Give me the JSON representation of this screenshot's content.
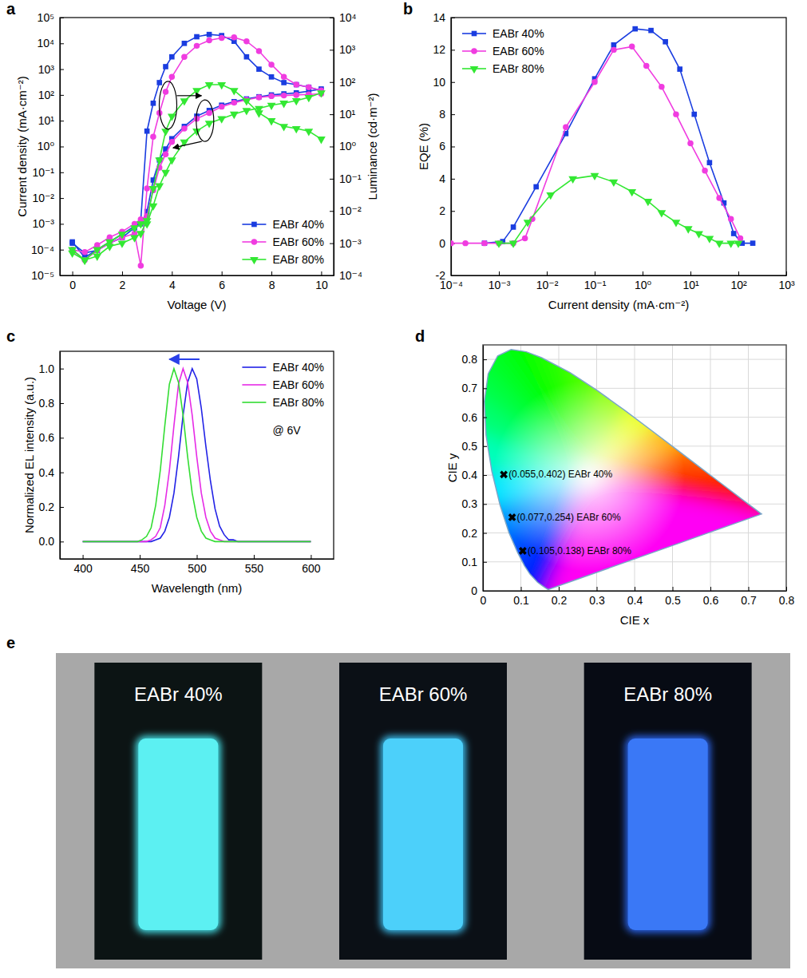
{
  "chart_data": [
    {
      "panel": "a",
      "type": "line",
      "x_label": "Voltage (V)",
      "y_label": "Current density (mA·cm⁻²)",
      "y2_label": "Luminance (cd·m⁻²)",
      "log": "y",
      "legend": "lower right",
      "xlim": [
        -0.5,
        10.5
      ],
      "xticks": [
        0,
        2,
        4,
        6,
        8,
        10
      ],
      "ylim": [
        1e-05,
        100000
      ],
      "yticks": [
        {
          "value": 1e-05,
          "label": "10⁻⁵"
        },
        {
          "value": 0.0001,
          "label": "10⁻⁴"
        },
        {
          "value": 0.001,
          "label": "10⁻³"
        },
        {
          "value": 0.01,
          "label": "10⁻²"
        },
        {
          "value": 0.1,
          "label": "10⁻¹"
        },
        {
          "value": 1,
          "label": "10⁰"
        },
        {
          "value": 10,
          "label": "10¹"
        },
        {
          "value": 100,
          "label": "10²"
        },
        {
          "value": 1000,
          "label": "10³"
        },
        {
          "value": 10000,
          "label": "10⁴"
        },
        {
          "value": 100000,
          "label": "10⁵"
        }
      ],
      "y2lim": [
        0.0001,
        10000
      ],
      "y2ticks": [
        {
          "value": 0.0001,
          "label": "10⁻⁴"
        },
        {
          "value": 0.001,
          "label": "10⁻³"
        },
        {
          "value": 0.01,
          "label": "10⁻²"
        },
        {
          "value": 0.1,
          "label": "10⁻¹"
        },
        {
          "value": 1,
          "label": "10⁰"
        },
        {
          "value": 10,
          "label": "10¹"
        },
        {
          "value": 100,
          "label": "10²"
        },
        {
          "value": 1000,
          "label": "10³"
        },
        {
          "value": 10000,
          "label": "10⁴"
        }
      ],
      "x": [
        0,
        0.5,
        1,
        1.5,
        2,
        2.5,
        2.75,
        3,
        3.25,
        3.5,
        3.75,
        4,
        4.5,
        5,
        5.5,
        6,
        6.5,
        7,
        7.5,
        8,
        8.5,
        9,
        9.5,
        10
      ],
      "series": [
        {
          "name": "EABr 40%",
          "color": "#1a3de0",
          "marker": "square",
          "values": [
            0.0002,
            5e-05,
            0.0001,
            0.0002,
            0.0004,
            0.0008,
            0.001,
            0.003,
            0.05,
            0.3,
            0.8,
            2,
            6,
            15,
            25,
            40,
            55,
            70,
            85,
            100,
            110,
            120,
            140,
            170
          ],
          "y2_values": [
            0.001,
            0.0005,
            0.0006,
            0.001,
            0.0015,
            0.003,
            0.005,
            3,
            22,
            96,
            300,
            605,
            1585,
            2540,
            2990,
            2760,
            1840,
            605,
            251,
            144,
            96,
            83,
            69,
            55
          ]
        },
        {
          "name": "EABr 60%",
          "color": "#f03ce0",
          "marker": "circle",
          "values": [
            0.0001,
            8e-05,
            0.00015,
            0.0003,
            0.0005,
            0.001,
            0.0015,
            0.002,
            0.02,
            0.15,
            0.5,
            1.5,
            5,
            12,
            20,
            35,
            50,
            65,
            80,
            90,
            95,
            100,
            105,
            110
          ],
          "y2_values": [
            0.0006,
            0.0003,
            0.0006,
            0.001,
            0.0015,
            0.002,
            0.0002,
            0.05,
            2,
            11,
            50,
            144,
            605,
            1330,
            1960,
            2330,
            2440,
            1840,
            912,
            347,
            144,
            83,
            69,
            55
          ]
        },
        {
          "name": "EABr 80%",
          "color": "#33e833",
          "marker": "triangle-down",
          "values": [
            0.0001,
            4e-05,
            0.0001,
            0.0002,
            0.0004,
            0.0007,
            0.001,
            0.001,
            0.005,
            0.03,
            0.1,
            0.3,
            1.5,
            4,
            8,
            12,
            18,
            25,
            30,
            40,
            48,
            60,
            80,
            120
          ],
          "y2_values": [
            0.0005,
            0.0003,
            0.0004,
            0.0008,
            0.001,
            0.0015,
            0.002,
            0.005,
            0.05,
            0.38,
            3,
            8.7,
            26,
            55,
            83,
            83,
            55,
            26,
            11,
            6.3,
            4.2,
            3.6,
            3,
            1.7
          ]
        }
      ]
    },
    {
      "panel": "b",
      "type": "line",
      "x_label": "Current density (mA·cm⁻²)",
      "y_label": "EQE (%)",
      "log": "x",
      "legend": "upper left",
      "xlim": [
        0.0001,
        1000
      ],
      "xticks": [
        {
          "value": 0.0001,
          "label": "10⁻⁴"
        },
        {
          "value": 0.001,
          "label": "10⁻³"
        },
        {
          "value": 0.01,
          "label": "10⁻²"
        },
        {
          "value": 0.1,
          "label": "10⁻¹"
        },
        {
          "value": 1,
          "label": "10⁰"
        },
        {
          "value": 10,
          "label": "10¹"
        },
        {
          "value": 100,
          "label": "10²"
        },
        {
          "value": 1000,
          "label": "10³"
        }
      ],
      "ylim": [
        -2,
        14
      ],
      "yticks": [
        -2,
        0,
        2,
        4,
        6,
        8,
        10,
        12,
        14
      ],
      "series": [
        {
          "name": "EABr 40%",
          "color": "#1a3de0",
          "marker": "square",
          "x": [
            0.0005,
            0.0012,
            0.002,
            0.006,
            0.025,
            0.1,
            0.25,
            0.7,
            1.5,
            3,
            6,
            12,
            25,
            50,
            80,
            120,
            200
          ],
          "values": [
            0,
            0.1,
            1,
            3.5,
            6.8,
            10.2,
            12.3,
            13.3,
            13.2,
            12.5,
            10.8,
            8,
            5,
            2.5,
            0.6,
            0,
            0
          ]
        },
        {
          "name": "EABr 60%",
          "color": "#f03ce0",
          "marker": "circle",
          "x": [
            0.0001,
            0.0002,
            0.0005,
            0.001,
            0.002,
            0.0035,
            0.005,
            0.025,
            0.1,
            0.25,
            0.6,
            1.2,
            2.5,
            5,
            10,
            20,
            40,
            70,
            110
          ],
          "values": [
            0,
            0,
            0,
            0,
            0,
            0.3,
            1.5,
            7.2,
            10,
            12,
            12.2,
            11,
            9.7,
            8,
            6.2,
            4.5,
            2.8,
            1.5,
            0.3
          ]
        },
        {
          "name": "EABr 80%",
          "color": "#33e833",
          "marker": "triangle-down",
          "x": [
            0.001,
            0.002,
            0.004,
            0.012,
            0.035,
            0.1,
            0.25,
            0.6,
            1.3,
            2.5,
            5,
            9,
            15,
            25,
            40,
            70,
            100
          ],
          "values": [
            0,
            0,
            1.3,
            3,
            4,
            4.2,
            3.8,
            3.2,
            2.6,
            1.9,
            1.3,
            0.9,
            0.6,
            0.3,
            0,
            0,
            0
          ]
        }
      ]
    },
    {
      "panel": "c",
      "type": "line",
      "x_label": "Wavelength (nm)",
      "y_label": "Normalized EL intensity (a.u.)",
      "annotation": "@ 6V",
      "legend": "upper right",
      "xlim": [
        380,
        620
      ],
      "xticks": [
        400,
        450,
        500,
        550,
        600
      ],
      "ylim": [
        -0.1,
        1.1
      ],
      "yticks": [
        {
          "value": 0,
          "label": "0.0"
        },
        0.2,
        0.4,
        0.6,
        0.8,
        {
          "value": 1,
          "label": "1.0"
        }
      ],
      "x": [
        400,
        404,
        408,
        412,
        416,
        420,
        424,
        428,
        432,
        436,
        440,
        444,
        448,
        452,
        456,
        460,
        464,
        468,
        472,
        476,
        480,
        484,
        488,
        492,
        496,
        500,
        504,
        508,
        512,
        516,
        520,
        524,
        528,
        532,
        536,
        540,
        544,
        548,
        552,
        556,
        560,
        564,
        568,
        572,
        576,
        580,
        584,
        588,
        592,
        596,
        600
      ],
      "series": [
        {
          "name": "EABr 40%",
          "color": "#2222e6",
          "values": [
            0,
            0,
            0,
            0,
            0,
            0,
            0,
            0,
            0,
            0,
            0,
            0,
            0,
            0,
            0,
            0,
            0.01,
            0.02,
            0.06,
            0.14,
            0.28,
            0.49,
            0.73,
            0.92,
            1,
            0.94,
            0.77,
            0.55,
            0.35,
            0.19,
            0.09,
            0.04,
            0.01,
            0.01,
            0,
            0,
            0,
            0,
            0,
            0,
            0,
            0,
            0,
            0,
            0,
            0,
            0,
            0,
            0,
            0,
            0
          ]
        },
        {
          "name": "EABr 60%",
          "color": "#e62be6",
          "values": [
            0,
            0,
            0,
            0,
            0,
            0,
            0,
            0,
            0,
            0,
            0,
            0,
            0,
            0,
            0,
            0.01,
            0.03,
            0.08,
            0.21,
            0.41,
            0.67,
            0.91,
            1,
            0.92,
            0.73,
            0.49,
            0.28,
            0.14,
            0.06,
            0.02,
            0.01,
            0,
            0,
            0,
            0,
            0,
            0,
            0,
            0,
            0,
            0,
            0,
            0,
            0,
            0,
            0,
            0,
            0,
            0,
            0,
            0
          ]
        },
        {
          "name": "EABr 80%",
          "color": "#33dd33",
          "values": [
            0,
            0,
            0,
            0,
            0,
            0,
            0,
            0,
            0,
            0,
            0,
            0,
            0,
            0.01,
            0.03,
            0.08,
            0.21,
            0.41,
            0.67,
            0.91,
            1,
            0.92,
            0.73,
            0.49,
            0.28,
            0.14,
            0.06,
            0.02,
            0.01,
            0,
            0,
            0,
            0,
            0,
            0,
            0,
            0,
            0,
            0,
            0,
            0,
            0,
            0,
            0,
            0,
            0,
            0,
            0,
            0,
            0,
            0
          ]
        }
      ]
    },
    {
      "panel": "d",
      "type": "scatter",
      "x_label": "CIE x",
      "y_label": "CIE y",
      "grid": true,
      "marker": "x",
      "color": "#000000",
      "xlim": [
        0,
        0.8
      ],
      "xticks": [
        0,
        0.1,
        0.2,
        0.3,
        0.4,
        0.5,
        0.6,
        0.7,
        0.8
      ],
      "ylim": [
        0,
        0.85
      ],
      "yticks": [
        0,
        0.1,
        0.2,
        0.3,
        0.4,
        0.5,
        0.6,
        0.7,
        0.8
      ],
      "points": [
        {
          "x": 0.055,
          "y": 0.402,
          "label": "(0.055,0.402) EABr 40%"
        },
        {
          "x": 0.077,
          "y": 0.254,
          "label": "(0.077,0.254) EABr 60%"
        },
        {
          "x": 0.105,
          "y": 0.138,
          "label": "(0.105,0.138) EABr 80%"
        }
      ],
      "spectral_locus": {
        "x": [
          0.1733,
          0.1714,
          0.1644,
          0.1566,
          0.144,
          0.1241,
          0.1096,
          0.0913,
          0.0687,
          0.0454,
          0.0235,
          0.0082,
          0.0039,
          0.0139,
          0.0389,
          0.0743,
          0.1142,
          0.1547,
          0.2296,
          0.3016,
          0.3731,
          0.4441,
          0.5125,
          0.5752,
          0.627,
          0.6915,
          0.719,
          0.7347
        ],
        "y": [
          0.0048,
          0.0051,
          0.0109,
          0.0177,
          0.0297,
          0.0578,
          0.0868,
          0.1327,
          0.2007,
          0.295,
          0.4127,
          0.5384,
          0.6548,
          0.7502,
          0.812,
          0.8338,
          0.8262,
          0.8059,
          0.7543,
          0.6923,
          0.6245,
          0.5547,
          0.4866,
          0.4242,
          0.3725,
          0.3083,
          0.2809,
          0.2653
        ]
      }
    }
  ],
  "photos": {
    "panel": "e",
    "labels": [
      "EABr 40%",
      "EABr 60%",
      "EABr 80%"
    ]
  }
}
